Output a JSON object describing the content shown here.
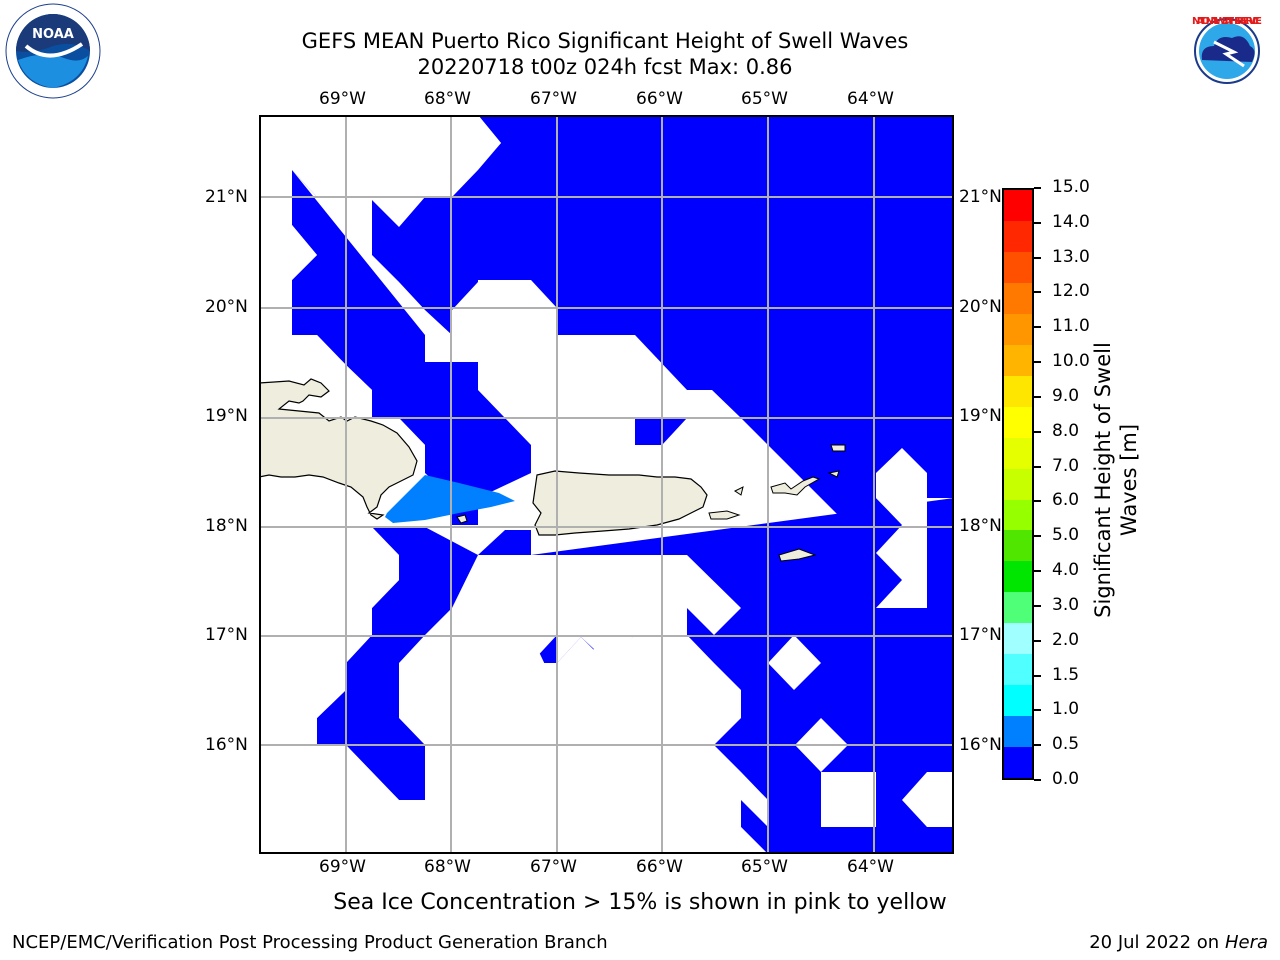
{
  "title": {
    "line1": "GEFS MEAN Puerto Rico Significant Height of Swell Waves",
    "line2": "20220718 t00z 024h fcst   Max: 0.86"
  },
  "map": {
    "lon_ticks": [
      "69°W",
      "68°W",
      "67°W",
      "66°W",
      "65°W",
      "64°W"
    ],
    "lat_ticks": [
      "21°N",
      "20°N",
      "19°N",
      "18°N",
      "17°N",
      "16°N"
    ],
    "colors": {
      "ocean_low": "#0000ff",
      "ocean_mid": "#0080ff",
      "land": "#eeedde",
      "masked": "#ffffff",
      "grid": "#b0b0b0"
    }
  },
  "colorbar": {
    "label": "Significant Height of Swell Waves [m]",
    "label_line1": "Significant Height of Swell",
    "label_line2": "Waves [m]",
    "ticks": [
      "15.0",
      "14.0",
      "13.0",
      "12.0",
      "11.0",
      "10.0",
      "9.0",
      "8.0",
      "7.0",
      "6.0",
      "5.0",
      "4.0",
      "3.0",
      "2.0",
      "1.5",
      "1.0",
      "0.5",
      "0.0"
    ],
    "colors": [
      "#ff0000",
      "#ff2800",
      "#ff5000",
      "#ff7800",
      "#ff9600",
      "#ffb400",
      "#ffe600",
      "#ffff00",
      "#e6ff00",
      "#c8ff00",
      "#96ff00",
      "#50e600",
      "#00e600",
      "#50ff78",
      "#a0ffff",
      "#50ffff",
      "#00ffff",
      "#0080ff",
      "#0000ff"
    ]
  },
  "note": "Sea Ice Concentration > 15% is shown in pink to yellow",
  "footer": {
    "left": "NCEP/EMC/Verification Post Processing Product Generation Branch",
    "right_date": "20 Jul 2022 on ",
    "right_host": "Hera"
  },
  "logos": {
    "noaa": "NOAA",
    "nws_text": "NATIONAL WEATHER SERVICE"
  }
}
